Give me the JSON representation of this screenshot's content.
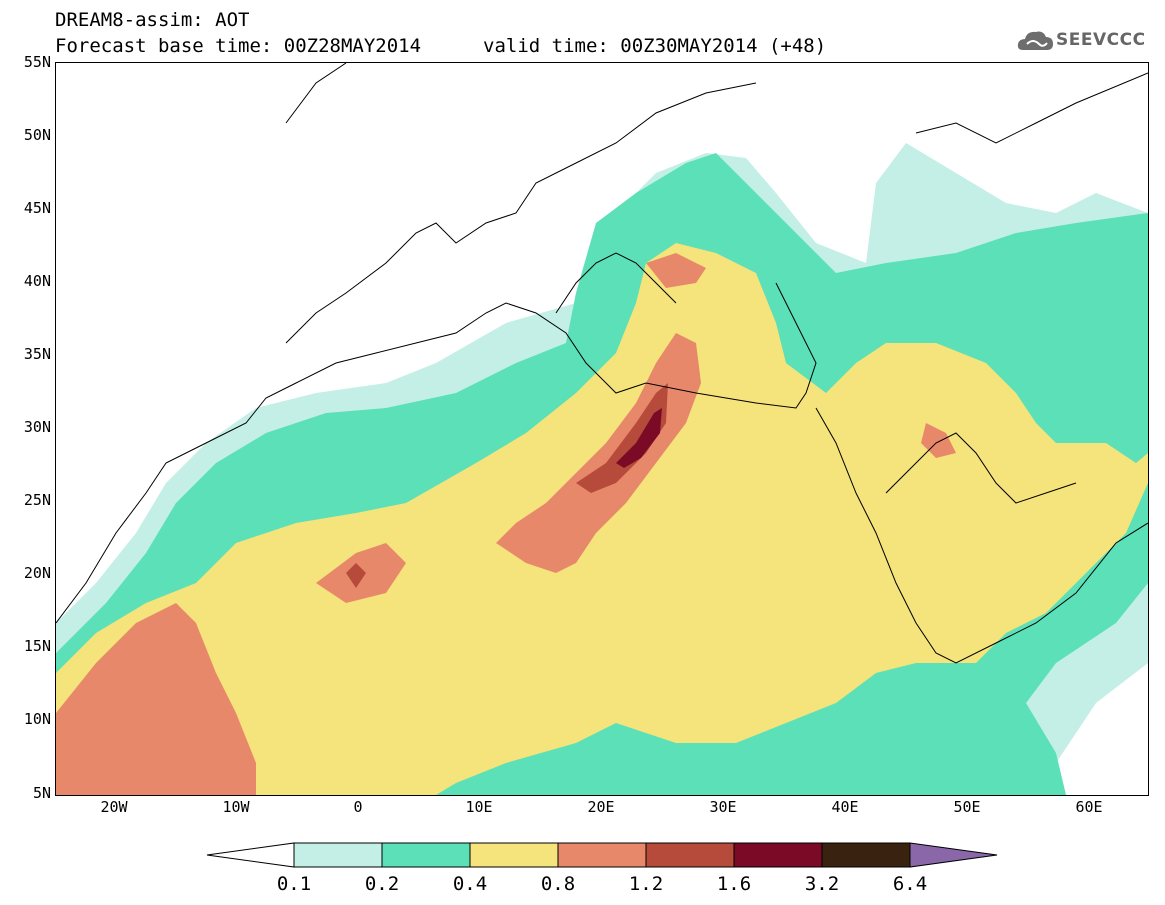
{
  "title": {
    "line1": "DREAM8-assim: AOT",
    "line2_base": "Forecast base time: 00Z28MAY2014",
    "line2_valid": "valid time: 00Z30MAY2014 (+48)"
  },
  "logo": {
    "text": "SEEVCCC",
    "icon": "cloud-logo-icon"
  },
  "map": {
    "variable": "AOT",
    "lat_labels": [
      "55N",
      "50N",
      "45N",
      "40N",
      "35N",
      "30N",
      "25N",
      "20N",
      "15N",
      "10N",
      "5N"
    ],
    "lon_labels": [
      "20W",
      "10W",
      "0",
      "10E",
      "20E",
      "30E",
      "40E",
      "50E",
      "60E"
    ]
  },
  "colorbar": {
    "levels": [
      "0.1",
      "0.2",
      "0.4",
      "0.8",
      "1.2",
      "1.6",
      "3.2",
      "6.4"
    ],
    "colors": [
      "#ffffff",
      "#c4efe6",
      "#5be0b8",
      "#f5e37c",
      "#e8886a",
      "#b64b3b",
      "#7a0a25",
      "#3a2210",
      "#8a67a8"
    ]
  }
}
